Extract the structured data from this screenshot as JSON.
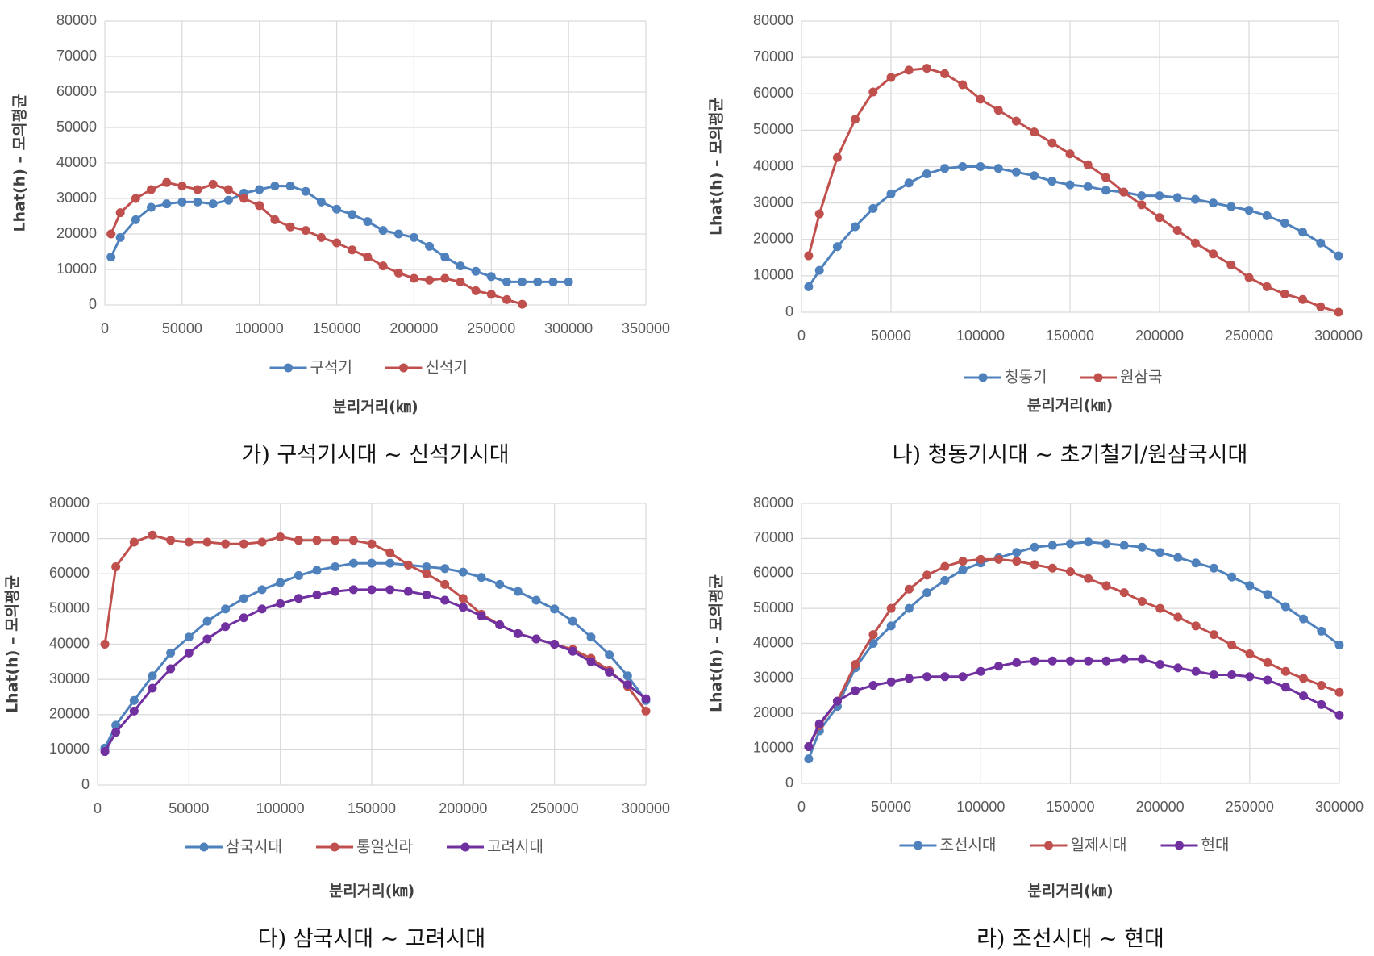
{
  "chart_data": [
    {
      "type": "line",
      "caption": "가) 구석기시대 ~ 신석기시대",
      "y_label": "Lhat(h) – 모의평균",
      "x_label": "분리거리(㎞)",
      "xlim": [
        0,
        350000
      ],
      "xticks": [
        0,
        50000,
        100000,
        150000,
        200000,
        250000,
        300000,
        350000
      ],
      "ylim": [
        0,
        80000
      ],
      "yticks": [
        0,
        10000,
        20000,
        30000,
        40000,
        50000,
        60000,
        70000,
        80000
      ],
      "grid": true,
      "legend": "bottom",
      "x": [
        4000,
        10000,
        20000,
        30000,
        40000,
        50000,
        60000,
        70000,
        80000,
        90000,
        100000,
        110000,
        120000,
        130000,
        140000,
        150000,
        160000,
        170000,
        180000,
        190000,
        200000,
        210000,
        220000,
        230000,
        240000,
        250000,
        260000,
        270000,
        280000,
        290000,
        300000
      ],
      "series": [
        {
          "name": "구석기",
          "color": "#4f81bd",
          "values": [
            13500,
            19000,
            24000,
            27500,
            28500,
            29000,
            29000,
            28500,
            29500,
            31500,
            32500,
            33500,
            33500,
            32000,
            29000,
            27000,
            25500,
            23500,
            21000,
            20000,
            19000,
            16500,
            13500,
            11000,
            9500,
            8000,
            6500,
            6500,
            6500,
            6500,
            6500
          ]
        },
        {
          "name": "신석기",
          "color": "#c0504d",
          "values": [
            20000,
            26000,
            30000,
            32500,
            34500,
            33500,
            32500,
            34000,
            32500,
            30000,
            28000,
            24000,
            22000,
            21000,
            19000,
            17500,
            15500,
            13500,
            11000,
            9000,
            7500,
            7000,
            7500,
            6500,
            4000,
            3000,
            1500,
            200,
            null,
            null,
            null
          ]
        }
      ]
    },
    {
      "type": "line",
      "caption": "나) 청동기시대 ~ 초기철기/원삼국시대",
      "y_label": "Lhat(h) – 모의평균",
      "x_label": "분리거리(㎞)",
      "xlim": [
        0,
        300000
      ],
      "xticks": [
        0,
        50000,
        100000,
        150000,
        200000,
        250000,
        300000
      ],
      "ylim": [
        0,
        80000
      ],
      "yticks": [
        0,
        10000,
        20000,
        30000,
        40000,
        50000,
        60000,
        70000,
        80000
      ],
      "grid": true,
      "legend": "bottom",
      "x": [
        4000,
        10000,
        20000,
        30000,
        40000,
        50000,
        60000,
        70000,
        80000,
        90000,
        100000,
        110000,
        120000,
        130000,
        140000,
        150000,
        160000,
        170000,
        180000,
        190000,
        200000,
        210000,
        220000,
        230000,
        240000,
        250000,
        260000,
        270000,
        280000,
        290000,
        300000
      ],
      "series": [
        {
          "name": "청동기",
          "color": "#4f81bd",
          "values": [
            7000,
            11500,
            18000,
            23500,
            28500,
            32500,
            35500,
            38000,
            39500,
            40000,
            40000,
            39500,
            38500,
            37500,
            36000,
            35000,
            34500,
            33500,
            33000,
            32000,
            32000,
            31500,
            31000,
            30000,
            29000,
            28000,
            26500,
            24500,
            22000,
            19000,
            15500
          ]
        },
        {
          "name": "원삼국",
          "color": "#c0504d",
          "values": [
            15500,
            27000,
            42500,
            53000,
            60500,
            64500,
            66500,
            67000,
            65500,
            62500,
            58500,
            55500,
            52500,
            49500,
            46500,
            43500,
            40500,
            37000,
            33000,
            29500,
            26000,
            22500,
            19000,
            16000,
            13000,
            9500,
            7000,
            5000,
            3500,
            1500,
            0
          ]
        }
      ]
    },
    {
      "type": "line",
      "caption": "다) 삼국시대 ~ 고려시대",
      "y_label": "Lhat(h) – 모의평균",
      "x_label": "분리거리(㎞)",
      "xlim": [
        0,
        300000
      ],
      "xticks": [
        0,
        50000,
        100000,
        150000,
        200000,
        250000,
        300000
      ],
      "ylim": [
        0,
        80000
      ],
      "yticks": [
        0,
        10000,
        20000,
        30000,
        40000,
        50000,
        60000,
        70000,
        80000
      ],
      "grid": true,
      "legend": "bottom",
      "x": [
        4000,
        10000,
        20000,
        30000,
        40000,
        50000,
        60000,
        70000,
        80000,
        90000,
        100000,
        110000,
        120000,
        130000,
        140000,
        150000,
        160000,
        170000,
        180000,
        190000,
        200000,
        210000,
        220000,
        230000,
        240000,
        250000,
        260000,
        270000,
        280000,
        290000,
        300000
      ],
      "series": [
        {
          "name": "삼국시대",
          "color": "#4f81bd",
          "values": [
            10500,
            17000,
            24000,
            31000,
            37500,
            42000,
            46500,
            50000,
            53000,
            55500,
            57500,
            59500,
            61000,
            62000,
            63000,
            63000,
            63000,
            62500,
            62000,
            61500,
            60500,
            59000,
            57000,
            55000,
            52500,
            50000,
            46500,
            42000,
            37000,
            31000,
            24000
          ]
        },
        {
          "name": "통일신라",
          "color": "#c0504d",
          "values": [
            40000,
            62000,
            69000,
            71000,
            69500,
            69000,
            69000,
            68500,
            68500,
            69000,
            70500,
            69500,
            69500,
            69500,
            69500,
            68500,
            66000,
            62500,
            60000,
            57000,
            53000,
            48500,
            45500,
            43000,
            41500,
            40000,
            38500,
            36000,
            32500,
            28000,
            21000
          ]
        },
        {
          "name": "고려시대",
          "color": "#7030a0",
          "values": [
            9500,
            15000,
            21000,
            27500,
            33000,
            37500,
            41500,
            45000,
            47500,
            50000,
            51500,
            53000,
            54000,
            55000,
            55500,
            55500,
            55500,
            55000,
            54000,
            52500,
            50500,
            48000,
            45500,
            43000,
            41500,
            40000,
            38000,
            35000,
            32000,
            28500,
            24500
          ]
        }
      ]
    },
    {
      "type": "line",
      "caption": "라) 조선시대 ~ 현대",
      "y_label": "Lhat(h) – 모의평균",
      "x_label": "분리거리(㎞)",
      "xlim": [
        0,
        300000
      ],
      "xticks": [
        0,
        50000,
        100000,
        150000,
        200000,
        250000,
        300000
      ],
      "ylim": [
        0,
        80000
      ],
      "yticks": [
        0,
        10000,
        20000,
        30000,
        40000,
        50000,
        60000,
        70000,
        80000
      ],
      "grid": true,
      "legend": "bottom",
      "x": [
        4000,
        10000,
        20000,
        30000,
        40000,
        50000,
        60000,
        70000,
        80000,
        90000,
        100000,
        110000,
        120000,
        130000,
        140000,
        150000,
        160000,
        170000,
        180000,
        190000,
        200000,
        210000,
        220000,
        230000,
        240000,
        250000,
        260000,
        270000,
        280000,
        290000,
        300000
      ],
      "series": [
        {
          "name": "조선시대",
          "color": "#4f81bd",
          "values": [
            7000,
            15000,
            22000,
            33000,
            40000,
            45000,
            50000,
            54500,
            58000,
            61000,
            63000,
            64500,
            66000,
            67500,
            68000,
            68500,
            69000,
            68500,
            68000,
            67500,
            66000,
            64500,
            63000,
            61500,
            59000,
            56500,
            54000,
            50500,
            47000,
            43500,
            39500
          ]
        },
        {
          "name": "일제시대",
          "color": "#c0504d",
          "values": [
            10500,
            16500,
            23500,
            34000,
            42500,
            50000,
            55500,
            59500,
            62000,
            63500,
            64000,
            64000,
            63500,
            62500,
            61500,
            60500,
            58500,
            56500,
            54500,
            52000,
            50000,
            47500,
            45000,
            42500,
            39500,
            37000,
            34500,
            32000,
            30000,
            28000,
            26000
          ]
        },
        {
          "name": "현대",
          "color": "#7030a0",
          "values": [
            10500,
            17000,
            23500,
            26500,
            28000,
            29000,
            30000,
            30500,
            30500,
            30500,
            32000,
            33500,
            34500,
            35000,
            35000,
            35000,
            35000,
            35000,
            35500,
            35500,
            34000,
            33000,
            32000,
            31000,
            31000,
            30500,
            29500,
            27500,
            25000,
            22500,
            19500
          ]
        }
      ]
    }
  ]
}
